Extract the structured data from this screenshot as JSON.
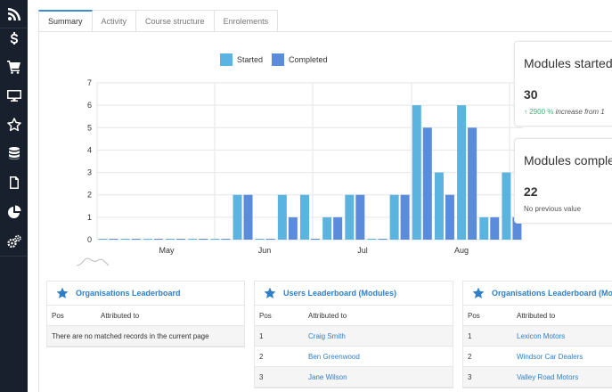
{
  "sidebar": {
    "icons": [
      "rss-icon",
      "dollar-icon",
      "cart-icon",
      "monitor-icon",
      "star-icon",
      "database-icon",
      "document-icon",
      "pie-chart-icon",
      "cogs-icon"
    ]
  },
  "tabs": [
    {
      "label": "Summary",
      "active": true
    },
    {
      "label": "Activity",
      "active": false
    },
    {
      "label": "Course structure",
      "active": false
    },
    {
      "label": "Enrolements",
      "active": false
    }
  ],
  "chart_data": {
    "type": "bar",
    "series": [
      {
        "name": "Started",
        "color": "#5ab4df",
        "values": [
          0,
          0,
          0,
          0,
          0,
          0,
          2,
          0,
          2,
          2,
          1,
          2,
          0,
          2,
          6,
          3,
          6,
          1,
          3
        ]
      },
      {
        "name": "Completed",
        "color": "#5b8cdb",
        "values": [
          0,
          0,
          0,
          0,
          0,
          0,
          2,
          0,
          1,
          0,
          1,
          2,
          0,
          2,
          5,
          2,
          5,
          1,
          1
        ]
      }
    ],
    "x_tick_labels": [
      "May",
      "Jun",
      "Jul",
      "Aug"
    ],
    "ylim": [
      0,
      7
    ],
    "y_ticks": [
      "0",
      "1",
      "2",
      "3",
      "4",
      "5",
      "6",
      "7"
    ],
    "grid": true
  },
  "cards": [
    {
      "title": "Modules started",
      "value": "30",
      "sub_inc": "2900 %",
      "sub_rest": "increase from 1"
    },
    {
      "title": "Modules completed",
      "value": "22",
      "sub_plain": "No previous value"
    }
  ],
  "leaderboards": [
    {
      "title": "Organisations Leaderboard",
      "col_pos": "Pos",
      "col_attr": "Attributed to",
      "empty": "There are no matched records in the current page",
      "rows": []
    },
    {
      "title": "Users Leaderboard (Modules)",
      "col_pos": "Pos",
      "col_attr": "Attributed to",
      "rows": [
        {
          "pos": "1",
          "name": "Craig Smith"
        },
        {
          "pos": "2",
          "name": "Ben Greenwood"
        },
        {
          "pos": "3",
          "name": "Jane Wilson"
        }
      ]
    },
    {
      "title": "Organisations Leaderboard (Modules)",
      "col_pos": "Pos",
      "col_attr": "Attributed to",
      "rows": [
        {
          "pos": "1",
          "name": "Lexicon Motors"
        },
        {
          "pos": "2",
          "name": "Windsor Car Dealers"
        },
        {
          "pos": "3",
          "name": "Valley Road Motors"
        }
      ]
    }
  ]
}
